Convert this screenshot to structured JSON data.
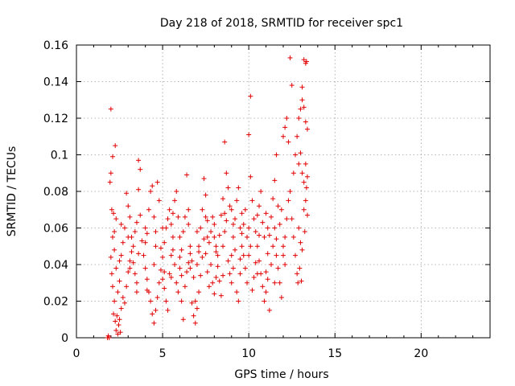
{
  "chart_data": {
    "type": "scatter",
    "title": "Day 218 of 2018, SRMTID for receiver spc1",
    "xlabel": "GPS time / hours",
    "ylabel": "SRMTID / TECUs",
    "xlim": [
      0,
      24
    ],
    "ylim": [
      0,
      0.16
    ],
    "xticks": [
      0,
      5,
      10,
      15,
      20
    ],
    "yticks": [
      0,
      0.02,
      0.04,
      0.06,
      0.08,
      0.1,
      0.12,
      0.14,
      0.16
    ],
    "xtick_labels": [
      "0",
      "5",
      "10",
      "15",
      "20"
    ],
    "ytick_labels": [
      "0",
      "0.02",
      "0.04",
      "0.06",
      "0.08",
      "0.1",
      "0.12",
      "0.14",
      "0.16"
    ],
    "grid": true,
    "marker": "+",
    "marker_color": "#e00000",
    "series": [
      {
        "name": "spc1",
        "points": [
          [
            1.8,
            0.0
          ],
          [
            1.85,
            0.001
          ],
          [
            1.9,
            0.0
          ],
          [
            1.95,
            0.085
          ],
          [
            2.0,
            0.09
          ],
          [
            2.0,
            0.125
          ],
          [
            2.05,
            0.07
          ],
          [
            2.1,
            0.099
          ],
          [
            2.15,
            0.068
          ],
          [
            2.2,
            0.058
          ],
          [
            2.25,
            0.105
          ],
          [
            2.3,
            0.065
          ],
          [
            2.0,
            0.044
          ],
          [
            2.05,
            0.035
          ],
          [
            2.1,
            0.028
          ],
          [
            2.15,
            0.013
          ],
          [
            2.2,
            0.02
          ],
          [
            2.25,
            0.009
          ],
          [
            2.3,
            0.004
          ],
          [
            2.35,
            0.012
          ],
          [
            2.4,
            0.002
          ],
          [
            2.45,
            0.007
          ],
          [
            2.5,
            0.01
          ],
          [
            2.55,
            0.003
          ],
          [
            2.6,
            0.016
          ],
          [
            2.1,
            0.055
          ],
          [
            2.2,
            0.048
          ],
          [
            2.3,
            0.038
          ],
          [
            2.4,
            0.025
          ],
          [
            2.5,
            0.031
          ],
          [
            2.6,
            0.045
          ],
          [
            2.7,
            0.052
          ],
          [
            2.8,
            0.06
          ],
          [
            2.9,
            0.079
          ],
          [
            3.0,
            0.072
          ],
          [
            3.1,
            0.066
          ],
          [
            3.2,
            0.055
          ],
          [
            3.3,
            0.041
          ],
          [
            3.4,
            0.035
          ],
          [
            3.5,
            0.03
          ],
          [
            2.7,
            0.022
          ],
          [
            2.8,
            0.019
          ],
          [
            2.9,
            0.028
          ],
          [
            3.0,
            0.036
          ],
          [
            3.1,
            0.042
          ],
          [
            3.2,
            0.047
          ],
          [
            3.3,
            0.05
          ],
          [
            3.4,
            0.058
          ],
          [
            3.5,
            0.063
          ],
          [
            3.6,
            0.097
          ],
          [
            3.7,
            0.092
          ],
          [
            3.6,
            0.081
          ],
          [
            3.7,
            0.067
          ],
          [
            3.8,
            0.053
          ],
          [
            3.9,
            0.045
          ],
          [
            4.0,
            0.038
          ],
          [
            4.1,
            0.032
          ],
          [
            4.2,
            0.025
          ],
          [
            4.3,
            0.02
          ],
          [
            4.4,
            0.013
          ],
          [
            4.5,
            0.008
          ],
          [
            4.6,
            0.015
          ],
          [
            4.7,
            0.022
          ],
          [
            4.8,
            0.03
          ],
          [
            4.9,
            0.037
          ],
          [
            5.0,
            0.044
          ],
          [
            5.1,
            0.052
          ],
          [
            5.2,
            0.06
          ],
          [
            5.3,
            0.065
          ],
          [
            5.4,
            0.07
          ],
          [
            4.0,
            0.06
          ],
          [
            4.1,
            0.057
          ],
          [
            4.2,
            0.07
          ],
          [
            4.3,
            0.08
          ],
          [
            4.4,
            0.083
          ],
          [
            4.5,
            0.066
          ],
          [
            4.6,
            0.058
          ],
          [
            4.7,
            0.085
          ],
          [
            4.8,
            0.075
          ],
          [
            4.9,
            0.049
          ],
          [
            5.0,
            0.032
          ],
          [
            5.1,
            0.027
          ],
          [
            5.2,
            0.02
          ],
          [
            5.3,
            0.015
          ],
          [
            5.4,
            0.035
          ],
          [
            5.5,
            0.045
          ],
          [
            5.6,
            0.055
          ],
          [
            5.7,
            0.04
          ],
          [
            5.8,
            0.03
          ],
          [
            5.9,
            0.025
          ],
          [
            6.0,
            0.038
          ],
          [
            6.1,
            0.048
          ],
          [
            6.2,
            0.058
          ],
          [
            6.3,
            0.066
          ],
          [
            6.4,
            0.089
          ],
          [
            6.5,
            0.07
          ],
          [
            6.6,
            0.05
          ],
          [
            6.7,
            0.042
          ],
          [
            6.8,
            0.033
          ],
          [
            6.9,
            0.02
          ],
          [
            5.5,
            0.062
          ],
          [
            5.6,
            0.068
          ],
          [
            5.7,
            0.075
          ],
          [
            5.8,
            0.08
          ],
          [
            5.9,
            0.066
          ],
          [
            6.0,
            0.055
          ],
          [
            6.1,
            0.02
          ],
          [
            6.2,
            0.01
          ],
          [
            6.3,
            0.028
          ],
          [
            6.4,
            0.036
          ],
          [
            6.5,
            0.041
          ],
          [
            6.6,
            0.046
          ],
          [
            6.7,
            0.019
          ],
          [
            6.8,
            0.012
          ],
          [
            6.9,
            0.008
          ],
          [
            7.0,
            0.016
          ],
          [
            7.1,
            0.025
          ],
          [
            7.2,
            0.034
          ],
          [
            7.3,
            0.044
          ],
          [
            7.4,
            0.054
          ],
          [
            7.0,
            0.04
          ],
          [
            7.1,
            0.05
          ],
          [
            7.2,
            0.06
          ],
          [
            7.3,
            0.07
          ],
          [
            7.4,
            0.087
          ],
          [
            7.5,
            0.078
          ],
          [
            7.6,
            0.064
          ],
          [
            7.7,
            0.052
          ],
          [
            7.8,
            0.04
          ],
          [
            7.9,
            0.03
          ],
          [
            8.0,
            0.024
          ],
          [
            8.1,
            0.033
          ],
          [
            8.2,
            0.045
          ],
          [
            8.3,
            0.056
          ],
          [
            8.4,
            0.067
          ],
          [
            8.5,
            0.076
          ],
          [
            8.6,
            0.107
          ],
          [
            8.7,
            0.09
          ],
          [
            8.8,
            0.082
          ],
          [
            8.9,
            0.072
          ],
          [
            7.5,
            0.046
          ],
          [
            7.6,
            0.036
          ],
          [
            7.7,
            0.028
          ],
          [
            7.8,
            0.058
          ],
          [
            7.9,
            0.066
          ],
          [
            8.0,
            0.055
          ],
          [
            8.1,
            0.047
          ],
          [
            8.2,
            0.039
          ],
          [
            8.3,
            0.031
          ],
          [
            8.4,
            0.023
          ],
          [
            8.5,
            0.05
          ],
          [
            8.6,
            0.058
          ],
          [
            8.7,
            0.064
          ],
          [
            8.8,
            0.042
          ],
          [
            8.9,
            0.035
          ],
          [
            9.0,
            0.045
          ],
          [
            9.1,
            0.055
          ],
          [
            9.2,
            0.065
          ],
          [
            9.3,
            0.075
          ],
          [
            9.4,
            0.082
          ],
          [
            9.0,
            0.03
          ],
          [
            9.1,
            0.038
          ],
          [
            9.2,
            0.048
          ],
          [
            9.3,
            0.025
          ],
          [
            9.4,
            0.02
          ],
          [
            9.5,
            0.035
          ],
          [
            9.6,
            0.05
          ],
          [
            9.7,
            0.062
          ],
          [
            9.8,
            0.07
          ],
          [
            9.9,
            0.055
          ],
          [
            10.0,
            0.045
          ],
          [
            10.1,
            0.132
          ],
          [
            10.0,
            0.111
          ],
          [
            10.1,
            0.088
          ],
          [
            10.2,
            0.075
          ],
          [
            10.3,
            0.065
          ],
          [
            10.4,
            0.058
          ],
          [
            10.5,
            0.05
          ],
          [
            10.6,
            0.042
          ],
          [
            10.7,
            0.035
          ],
          [
            9.5,
            0.06
          ],
          [
            9.6,
            0.068
          ],
          [
            9.7,
            0.045
          ],
          [
            9.8,
            0.038
          ],
          [
            9.9,
            0.03
          ],
          [
            10.2,
            0.026
          ],
          [
            10.3,
            0.033
          ],
          [
            10.4,
            0.041
          ],
          [
            10.5,
            0.067
          ],
          [
            10.6,
            0.072
          ],
          [
            10.8,
            0.028
          ],
          [
            10.9,
            0.02
          ],
          [
            11.0,
            0.036
          ],
          [
            11.1,
            0.046
          ],
          [
            11.2,
            0.056
          ],
          [
            11.3,
            0.066
          ],
          [
            11.4,
            0.076
          ],
          [
            11.5,
            0.086
          ],
          [
            11.6,
            0.1
          ],
          [
            11.7,
            0.072
          ],
          [
            10.7,
            0.08
          ],
          [
            10.8,
            0.063
          ],
          [
            10.9,
            0.055
          ],
          [
            11.0,
            0.025
          ],
          [
            11.1,
            0.032
          ],
          [
            11.2,
            0.015
          ],
          [
            11.3,
            0.04
          ],
          [
            11.4,
            0.05
          ],
          [
            11.5,
            0.06
          ],
          [
            11.6,
            0.045
          ],
          [
            11.7,
            0.038
          ],
          [
            11.8,
            0.03
          ],
          [
            11.9,
            0.022
          ],
          [
            12.0,
            0.045
          ],
          [
            12.1,
            0.055
          ],
          [
            12.2,
            0.065
          ],
          [
            12.0,
            0.11
          ],
          [
            12.1,
            0.115
          ],
          [
            12.2,
            0.12
          ],
          [
            12.3,
            0.107
          ],
          [
            11.8,
            0.062
          ],
          [
            11.9,
            0.07
          ],
          [
            12.3,
            0.075
          ],
          [
            12.4,
            0.153
          ],
          [
            12.5,
            0.138
          ],
          [
            12.4,
            0.08
          ],
          [
            12.5,
            0.065
          ],
          [
            12.6,
            0.055
          ],
          [
            12.7,
            0.045
          ],
          [
            12.8,
            0.035
          ],
          [
            12.6,
            0.09
          ],
          [
            12.7,
            0.1
          ],
          [
            12.8,
            0.11
          ],
          [
            12.9,
            0.12
          ],
          [
            13.0,
            0.125
          ],
          [
            13.1,
            0.13
          ],
          [
            13.2,
            0.126
          ],
          [
            13.3,
            0.118
          ],
          [
            13.4,
            0.114
          ],
          [
            13.35,
            0.151
          ],
          [
            13.3,
            0.15
          ],
          [
            13.2,
            0.152
          ],
          [
            13.1,
            0.137
          ],
          [
            13.0,
            0.101
          ],
          [
            12.9,
            0.095
          ],
          [
            13.1,
            0.09
          ],
          [
            13.2,
            0.085
          ],
          [
            13.3,
            0.095
          ],
          [
            13.4,
            0.088
          ],
          [
            13.35,
            0.082
          ],
          [
            12.9,
            0.06
          ],
          [
            13.0,
            0.052
          ],
          [
            13.1,
            0.048
          ],
          [
            13.2,
            0.07
          ],
          [
            13.3,
            0.075
          ],
          [
            13.4,
            0.067
          ],
          [
            12.95,
            0.038
          ],
          [
            13.05,
            0.031
          ],
          [
            12.85,
            0.03
          ],
          [
            13.25,
            0.058
          ],
          [
            2.5,
            0.042
          ],
          [
            3.0,
            0.055
          ],
          [
            3.5,
            0.025
          ],
          [
            4.0,
            0.052
          ],
          [
            4.5,
            0.04
          ],
          [
            5.0,
            0.06
          ],
          [
            5.5,
            0.033
          ],
          [
            6.0,
            0.044
          ],
          [
            6.5,
            0.062
          ],
          [
            7.0,
            0.058
          ],
          [
            7.5,
            0.066
          ],
          [
            8.0,
            0.062
          ],
          [
            8.5,
            0.034
          ],
          [
            9.0,
            0.07
          ],
          [
            9.5,
            0.043
          ],
          [
            10.0,
            0.06
          ],
          [
            10.5,
            0.035
          ],
          [
            11.0,
            0.068
          ],
          [
            11.5,
            0.03
          ],
          [
            12.0,
            0.05
          ],
          [
            2.6,
            0.062
          ],
          [
            3.1,
            0.038
          ],
          [
            3.6,
            0.046
          ],
          [
            4.1,
            0.026
          ],
          [
            4.6,
            0.05
          ],
          [
            5.1,
            0.036
          ],
          [
            5.6,
            0.048
          ],
          [
            6.1,
            0.034
          ],
          [
            6.6,
            0.038
          ],
          [
            7.1,
            0.047
          ],
          [
            7.6,
            0.055
          ],
          [
            8.1,
            0.05
          ],
          [
            8.6,
            0.068
          ],
          [
            9.1,
            0.062
          ],
          [
            9.6,
            0.057
          ],
          [
            10.1,
            0.05
          ],
          [
            10.6,
            0.056
          ],
          [
            11.1,
            0.06
          ],
          [
            11.6,
            0.054
          ],
          [
            12.1,
            0.04
          ]
        ]
      }
    ]
  }
}
